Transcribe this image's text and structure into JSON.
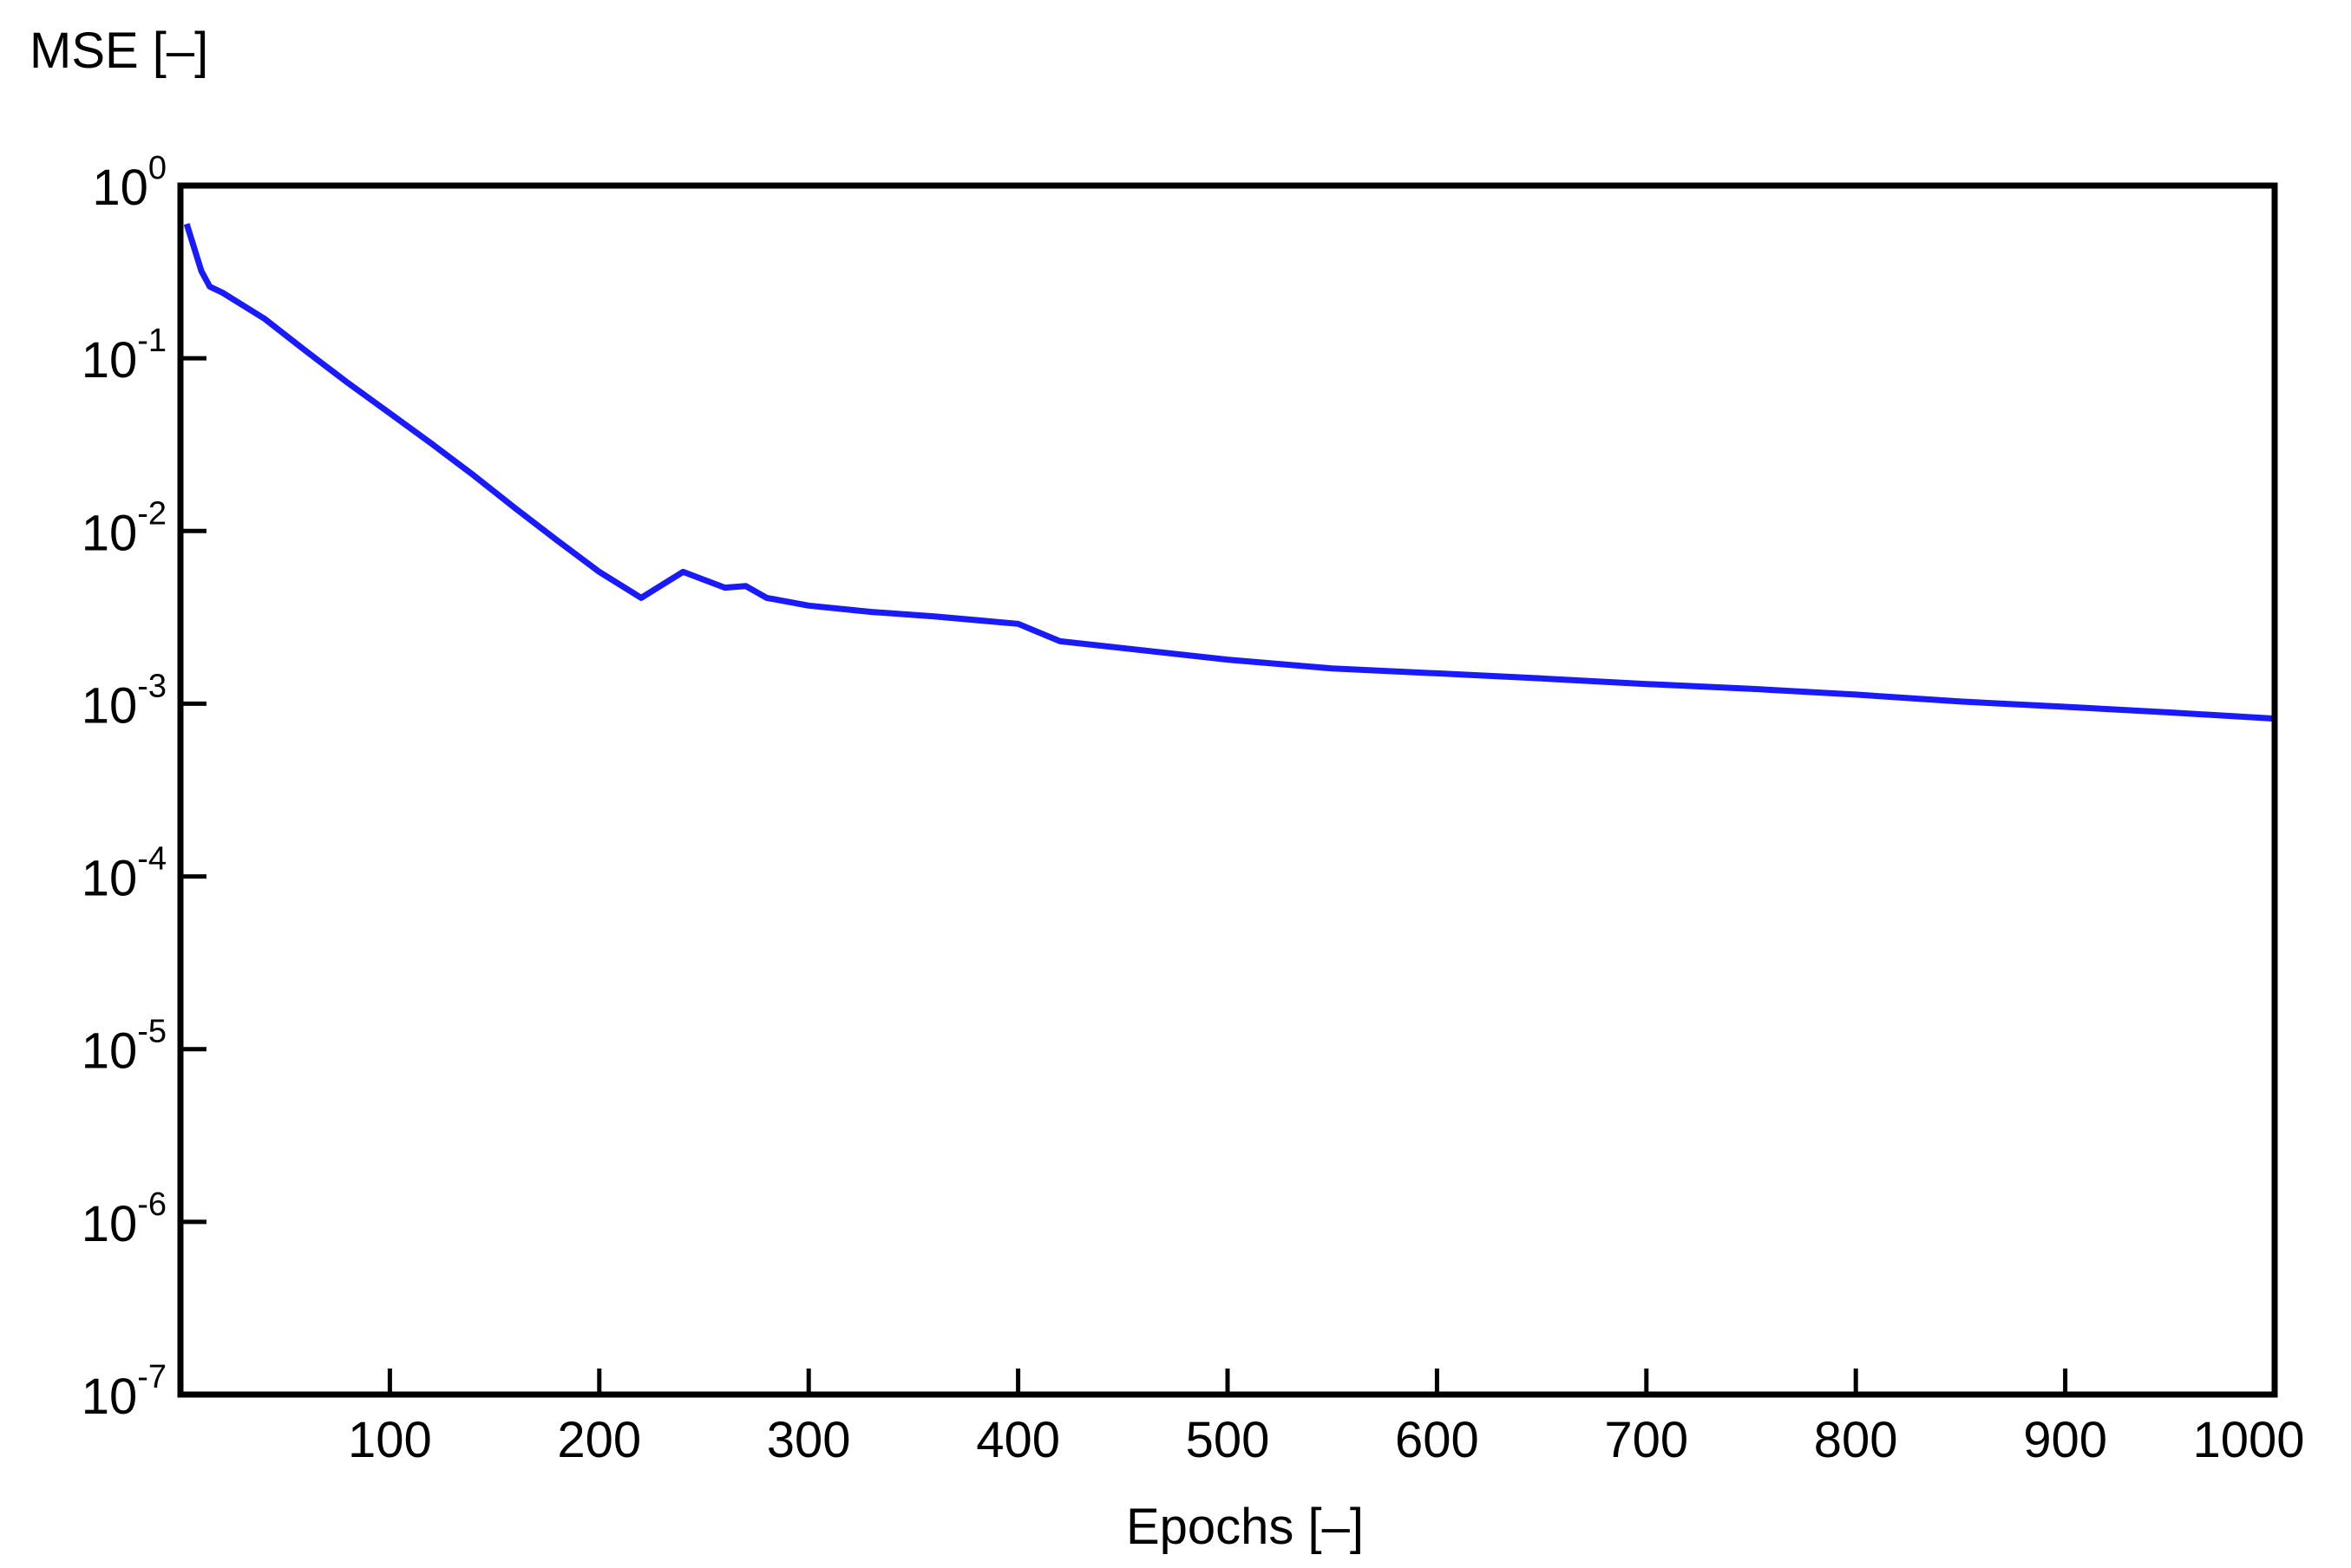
{
  "chart_data": {
    "type": "line",
    "title": "",
    "xlabel": "Epochs [–]",
    "ylabel": "MSE [–]",
    "xlim": [
      0,
      1000
    ],
    "ylim": [
      1e-07,
      1
    ],
    "yscale": "log",
    "grid": false,
    "x_ticks": [
      "100",
      "200",
      "300",
      "400",
      "500",
      "600",
      "700",
      "800",
      "900",
      "1000"
    ],
    "y_ticks": [
      {
        "base": "10",
        "exp": "0"
      },
      {
        "base": "10",
        "exp": "-1"
      },
      {
        "base": "10",
        "exp": "-2"
      },
      {
        "base": "10",
        "exp": "-3"
      },
      {
        "base": "10",
        "exp": "-4"
      },
      {
        "base": "10",
        "exp": "-5"
      },
      {
        "base": "10",
        "exp": "-6"
      },
      {
        "base": "10",
        "exp": "-7"
      }
    ],
    "series": [
      {
        "color": "#1a1aff",
        "x": [
          3,
          5,
          10,
          14,
          20,
          40,
          60,
          80,
          100,
          120,
          140,
          160,
          180,
          200,
          220,
          240,
          260,
          270,
          280,
          300,
          330,
          360,
          400,
          420,
          450,
          500,
          550,
          600,
          650,
          700,
          750,
          800,
          850,
          900,
          950,
          1000
        ],
        "y": [
          0.6,
          0.5,
          0.32,
          0.26,
          0.24,
          0.17,
          0.11,
          0.072,
          0.048,
          0.032,
          0.021,
          0.0135,
          0.0088,
          0.0058,
          0.0041,
          0.0058,
          0.0047,
          0.0048,
          0.0041,
          0.0037,
          0.0034,
          0.0032,
          0.0029,
          0.0023,
          0.0021,
          0.0018,
          0.0016,
          0.0015,
          0.0014,
          0.0013,
          0.00122,
          0.00113,
          0.00103,
          0.00096,
          0.00089,
          0.00082
        ]
      }
    ]
  }
}
